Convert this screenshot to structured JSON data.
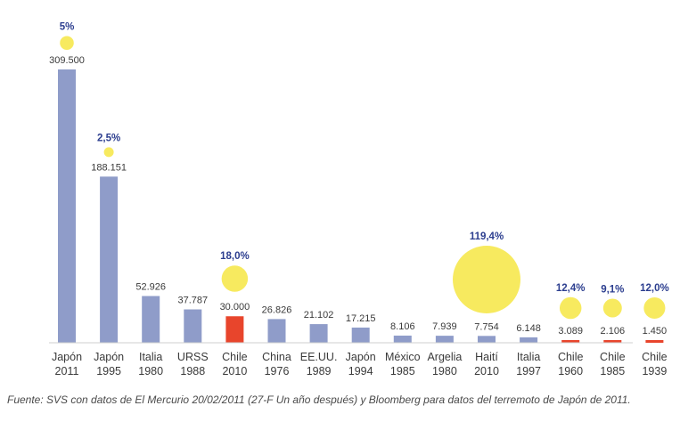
{
  "colors": {
    "bar_default": "#8f9cc9",
    "bar_highlight": "#e8452c",
    "bubble": "#f7ea5f",
    "pct_text": "#2c3e8f",
    "axis": "#cfcfcf"
  },
  "chart_data": {
    "type": "bar",
    "categories": [
      [
        "Japón",
        "2011"
      ],
      [
        "Japón",
        "1995"
      ],
      [
        "Italia",
        "1980"
      ],
      [
        "URSS",
        "1988"
      ],
      [
        "Chile",
        "2010"
      ],
      [
        "China",
        "1976"
      ],
      [
        "EE.UU.",
        "1989"
      ],
      [
        "Japón",
        "1994"
      ],
      [
        "México",
        "1985"
      ],
      [
        "Argelia",
        "1980"
      ],
      [
        "Haití",
        "2010"
      ],
      [
        "Italia",
        "1997"
      ],
      [
        "Chile",
        "1960"
      ],
      [
        "Chile",
        "1985"
      ],
      [
        "Chile",
        "1939"
      ]
    ],
    "values": [
      309500,
      188151,
      52926,
      37787,
      30000,
      26826,
      21102,
      17215,
      8106,
      7939,
      7754,
      6148,
      3089,
      2106,
      1450
    ],
    "value_labels": [
      "309.500",
      "188.151",
      "52.926",
      "37.787",
      "30.000",
      "26.826",
      "21.102",
      "17.215",
      "8.106",
      "7.939",
      "7.754",
      "6.148",
      "3.089",
      "2.106",
      "1.450"
    ],
    "highlight": [
      false,
      false,
      false,
      false,
      true,
      false,
      false,
      false,
      false,
      false,
      false,
      false,
      true,
      true,
      true
    ],
    "bubbles": [
      {
        "index": 0,
        "value": 5,
        "label": "5%"
      },
      {
        "index": 1,
        "value": 2.5,
        "label": "2,5%"
      },
      {
        "index": 4,
        "value": 18.0,
        "label": "18,0%"
      },
      {
        "index": 10,
        "value": 119.4,
        "label": "119,4%"
      },
      {
        "index": 12,
        "value": 12.4,
        "label": "12,4%"
      },
      {
        "index": 13,
        "value": 9.1,
        "label": "9,1%"
      },
      {
        "index": 14,
        "value": 12.0,
        "label": "12,0%"
      }
    ]
  },
  "source_text": "Fuente: SVS con datos de El Mercurio 20/02/2011 (27-F Un año después) y Bloomberg para datos del terremoto de Japón de 2011."
}
